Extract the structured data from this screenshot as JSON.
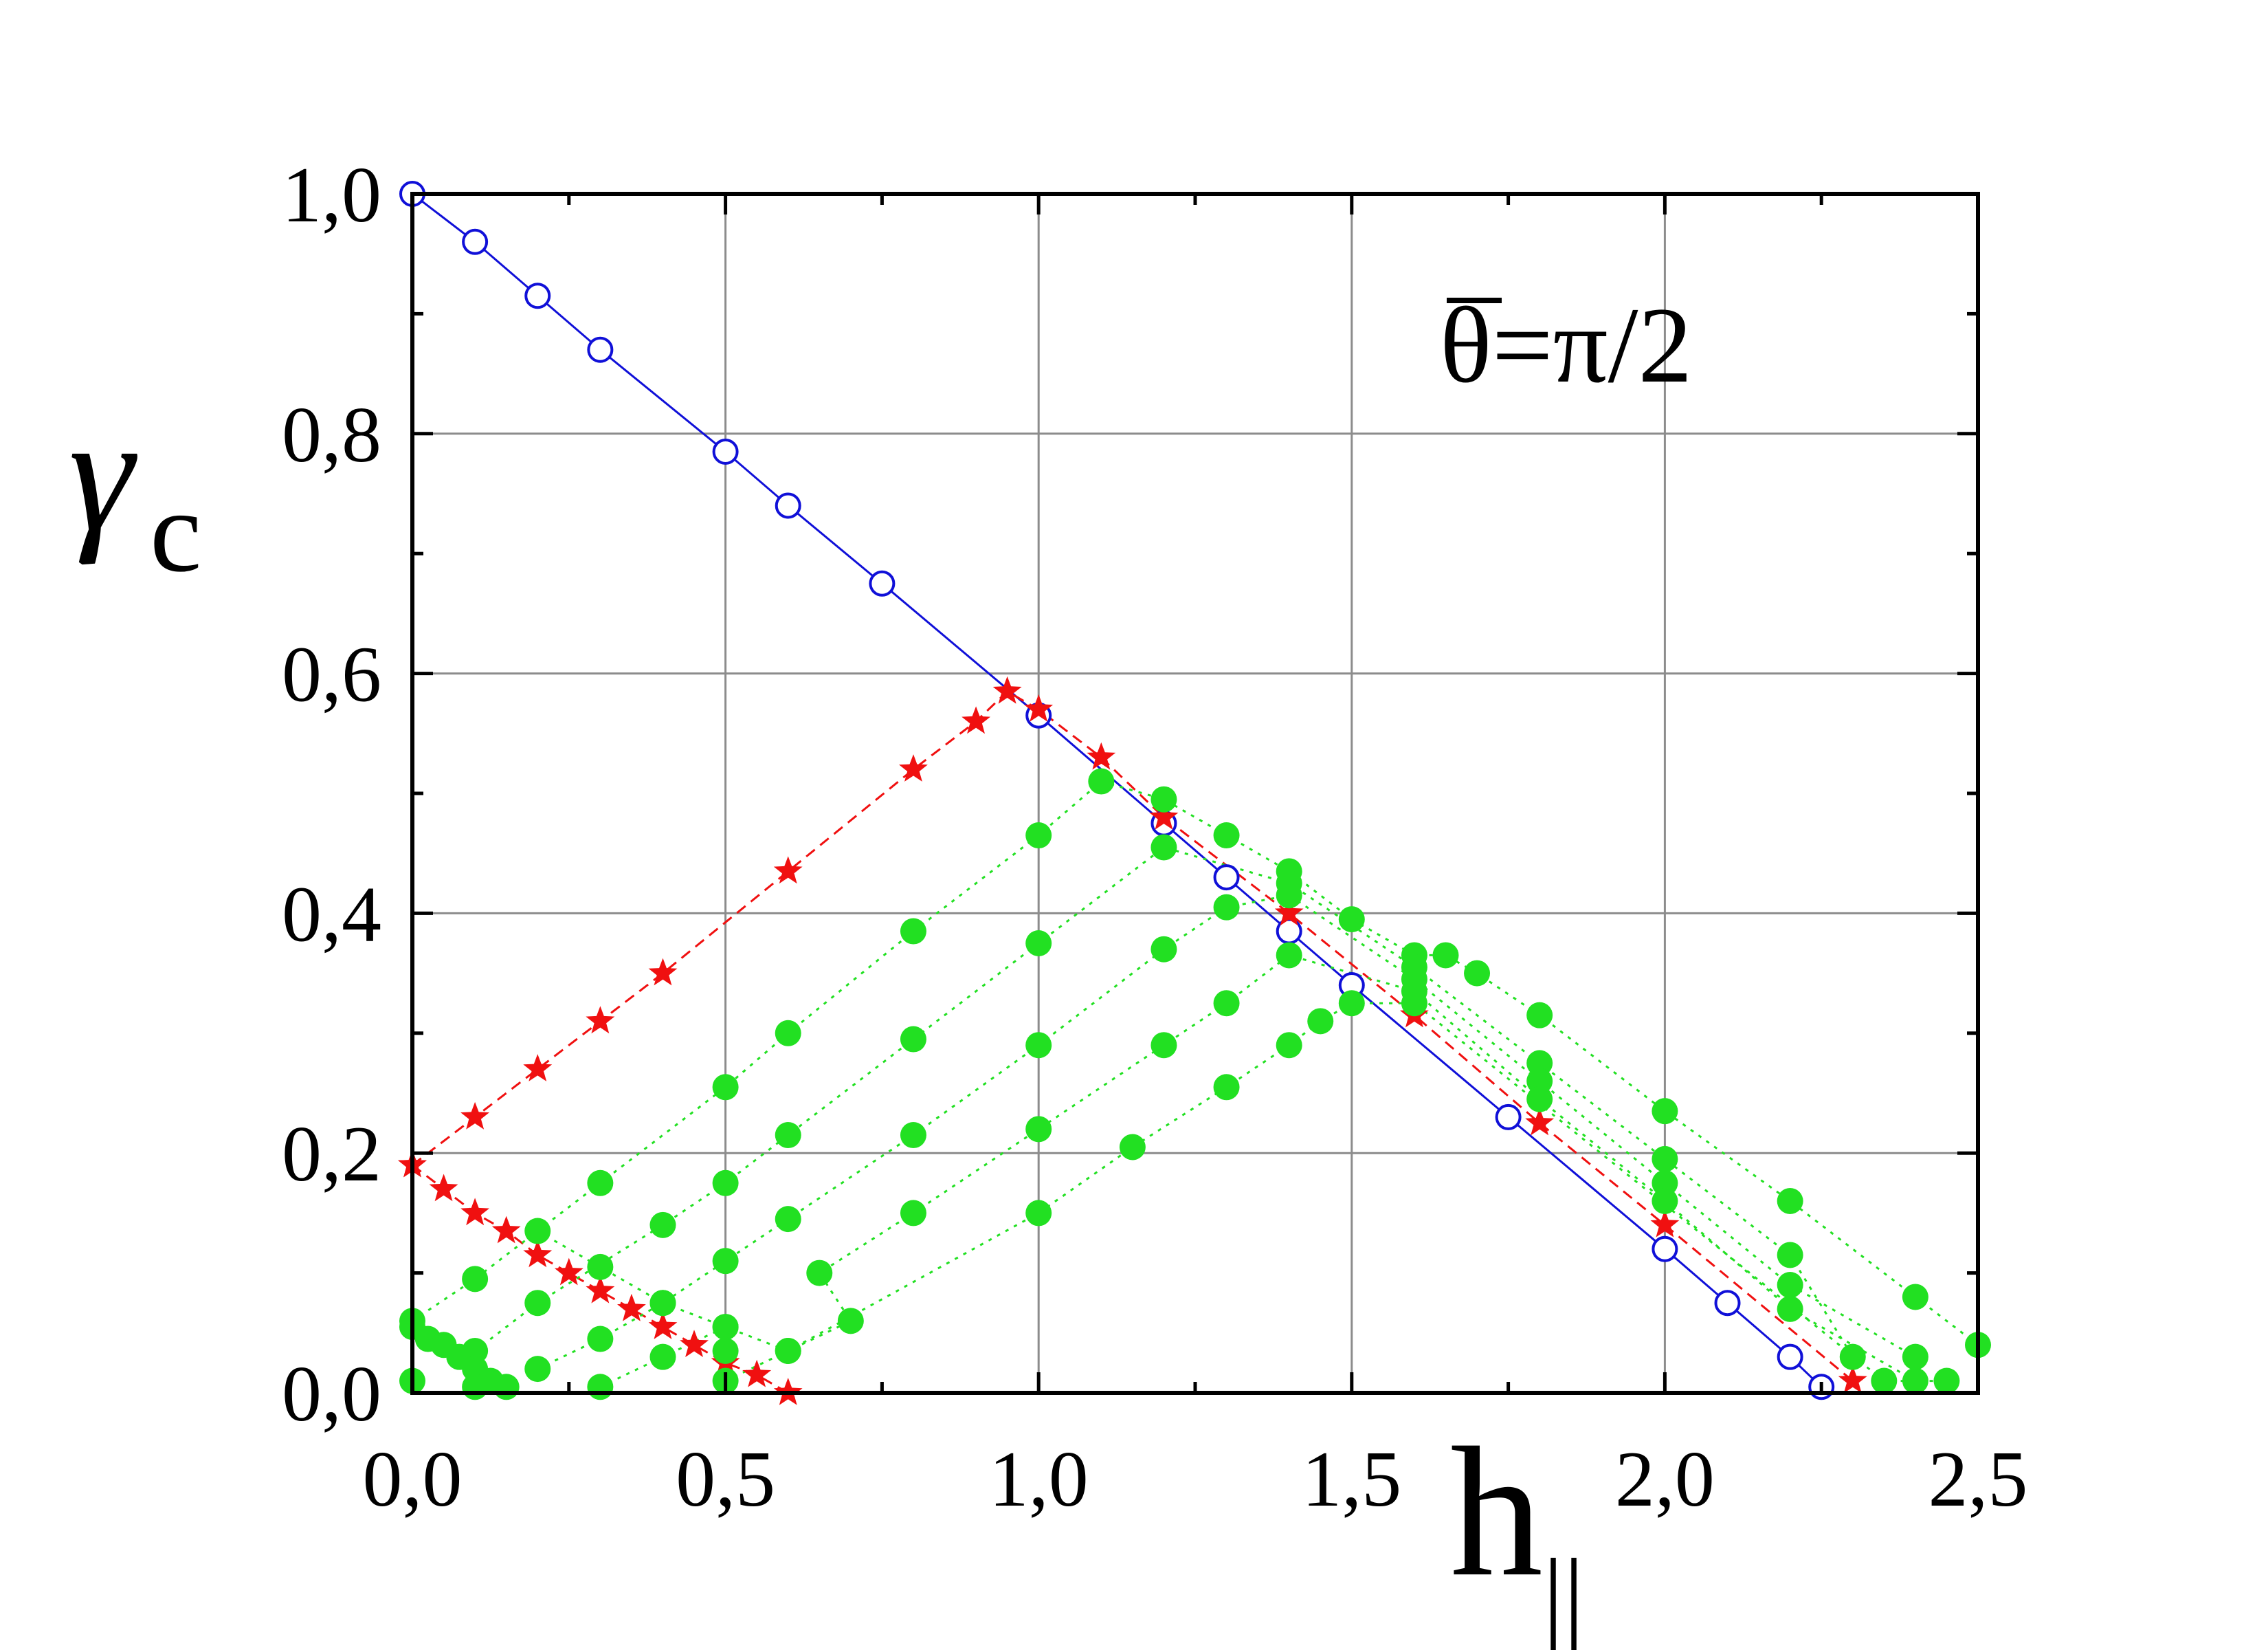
{
  "chart_data": {
    "type": "scatter",
    "annotation": "θ=π/2",
    "xlabel": "h",
    "xlabel_sub": "||",
    "ylabel": "γ",
    "ylabel_sub": "c",
    "xlim": [
      0,
      2.5
    ],
    "ylim": [
      0,
      1
    ],
    "grid": true,
    "x_ticks": [
      0,
      0.5,
      1.0,
      1.5,
      2.0,
      2.5
    ],
    "y_ticks": [
      0,
      0.2,
      0.4,
      0.6,
      0.8,
      1.0
    ],
    "x_tick_labels": [
      "0,0",
      "0,5",
      "1,0",
      "1,5",
      "2,0",
      "2,5"
    ],
    "y_tick_labels": [
      "0,0",
      "0,2",
      "0,4",
      "0,6",
      "0,8",
      "1,0"
    ],
    "colors": {
      "blue": "#1010d8",
      "red": "#f01010",
      "green": "#22e022",
      "grid": "#8c8c8c"
    },
    "series": [
      {
        "style": "blue-open-circle",
        "line": "solid",
        "points": [
          [
            0,
            1.0
          ],
          [
            0.1,
            0.96
          ],
          [
            0.2,
            0.915
          ],
          [
            0.3,
            0.87
          ],
          [
            0.5,
            0.785
          ],
          [
            0.6,
            0.74
          ],
          [
            0.75,
            0.675
          ],
          [
            1.0,
            0.565
          ],
          [
            1.2,
            0.475
          ],
          [
            1.3,
            0.43
          ],
          [
            1.4,
            0.385
          ],
          [
            1.5,
            0.34
          ],
          [
            1.75,
            0.23
          ],
          [
            2.0,
            0.12
          ],
          [
            2.1,
            0.075
          ],
          [
            2.2,
            0.03
          ],
          [
            2.25,
            0.005
          ]
        ]
      },
      {
        "style": "red-star",
        "line": "dashed",
        "points": [
          [
            0,
            0.19
          ],
          [
            0.1,
            0.23
          ],
          [
            0.2,
            0.27
          ],
          [
            0.3,
            0.31
          ],
          [
            0.4,
            0.35
          ],
          [
            0.6,
            0.435
          ],
          [
            0.8,
            0.52
          ],
          [
            0.9,
            0.56
          ],
          [
            0.95,
            0.585
          ],
          [
            1.0,
            0.57
          ],
          [
            1.1,
            0.53
          ],
          [
            1.2,
            0.48
          ],
          [
            1.4,
            0.4
          ],
          [
            1.6,
            0.315
          ],
          [
            1.8,
            0.225
          ],
          [
            2.0,
            0.14
          ],
          [
            2.3,
            0.01
          ]
        ]
      },
      {
        "style": "red-star",
        "line": "dashed",
        "points": [
          [
            0,
            0.19
          ],
          [
            0.05,
            0.17
          ],
          [
            0.1,
            0.15
          ],
          [
            0.15,
            0.135
          ],
          [
            0.2,
            0.115
          ],
          [
            0.25,
            0.1
          ],
          [
            0.3,
            0.085
          ],
          [
            0.35,
            0.07
          ],
          [
            0.4,
            0.055
          ],
          [
            0.45,
            0.04
          ],
          [
            0.5,
            0.025
          ],
          [
            0.55,
            0.015
          ],
          [
            0.6,
            0.0
          ]
        ]
      },
      {
        "style": "green-dot",
        "line": "dotted",
        "points": [
          [
            0,
            0.06
          ],
          [
            0.1,
            0.095
          ],
          [
            0.3,
            0.175
          ],
          [
            0.5,
            0.255
          ],
          [
            0.6,
            0.3
          ],
          [
            0.8,
            0.385
          ],
          [
            1.0,
            0.465
          ],
          [
            1.1,
            0.51
          ],
          [
            1.2,
            0.495
          ],
          [
            1.3,
            0.465
          ],
          [
            1.4,
            0.435
          ],
          [
            1.5,
            0.395
          ],
          [
            1.6,
            0.365
          ],
          [
            1.65,
            0.365
          ],
          [
            1.7,
            0.35
          ],
          [
            1.8,
            0.315
          ],
          [
            2.0,
            0.235
          ],
          [
            2.2,
            0.16
          ],
          [
            2.4,
            0.08
          ],
          [
            2.5,
            0.04
          ]
        ]
      },
      {
        "style": "green-dot",
        "line": "dotted",
        "points": [
          [
            0.1,
            0.035
          ],
          [
            0.2,
            0.075
          ],
          [
            0.4,
            0.14
          ],
          [
            0.5,
            0.175
          ],
          [
            0.6,
            0.215
          ],
          [
            0.8,
            0.295
          ],
          [
            1.0,
            0.375
          ],
          [
            1.2,
            0.455
          ],
          [
            1.4,
            0.425
          ],
          [
            1.6,
            0.355
          ],
          [
            1.8,
            0.275
          ],
          [
            2.0,
            0.195
          ],
          [
            2.2,
            0.115
          ],
          [
            2.3,
            0.03
          ]
        ]
      },
      {
        "style": "green-dot",
        "line": "dotted",
        "points": [
          [
            0.2,
            0.135
          ],
          [
            0.3,
            0.105
          ],
          [
            0.4,
            0.075
          ],
          [
            0.5,
            0.055
          ],
          [
            0.5,
            0.035
          ]
        ]
      },
      {
        "style": "green-dot",
        "line": "dotted",
        "points": [
          [
            0.2,
            0.02
          ],
          [
            0.3,
            0.045
          ],
          [
            0.4,
            0.075
          ],
          [
            0.5,
            0.11
          ],
          [
            0.6,
            0.145
          ],
          [
            0.8,
            0.215
          ],
          [
            1.0,
            0.29
          ],
          [
            1.2,
            0.37
          ],
          [
            1.3,
            0.405
          ],
          [
            1.4,
            0.415
          ],
          [
            1.6,
            0.345
          ],
          [
            1.8,
            0.26
          ],
          [
            2.0,
            0.175
          ],
          [
            2.2,
            0.09
          ],
          [
            2.4,
            0.03
          ]
        ]
      },
      {
        "style": "green-dot",
        "line": "dotted",
        "points": [
          [
            0.3,
            0.005
          ],
          [
            0.4,
            0.03
          ],
          [
            0.5,
            0.055
          ],
          [
            0.6,
            0.035
          ],
          [
            0.7,
            0.06
          ],
          [
            0.65,
            0.1
          ],
          [
            0.8,
            0.15
          ],
          [
            1.0,
            0.22
          ],
          [
            1.2,
            0.29
          ],
          [
            1.3,
            0.325
          ],
          [
            1.4,
            0.365
          ],
          [
            1.6,
            0.335
          ],
          [
            1.8,
            0.245
          ],
          [
            2.0,
            0.16
          ],
          [
            2.2,
            0.07
          ],
          [
            2.4,
            0.01
          ]
        ]
      },
      {
        "style": "green-dot",
        "line": "dotted",
        "points": [
          [
            0.5,
            0.01
          ],
          [
            0.6,
            0.035
          ],
          [
            1.0,
            0.15
          ],
          [
            1.15,
            0.205
          ],
          [
            1.3,
            0.255
          ],
          [
            1.4,
            0.29
          ],
          [
            1.45,
            0.31
          ],
          [
            1.5,
            0.325
          ],
          [
            1.6,
            0.325
          ],
          [
            2.35,
            0.01
          ],
          [
            2.45,
            0.01
          ]
        ]
      },
      {
        "style": "green-dot",
        "line": "none",
        "points": [
          [
            0,
            0.055
          ],
          [
            0,
            0.01
          ],
          [
            0.025,
            0.045
          ],
          [
            0.05,
            0.04
          ],
          [
            0.075,
            0.03
          ],
          [
            0.1,
            0.02
          ],
          [
            0.1,
            0.005
          ],
          [
            0.125,
            0.01
          ],
          [
            0.15,
            0.005
          ]
        ]
      }
    ]
  }
}
